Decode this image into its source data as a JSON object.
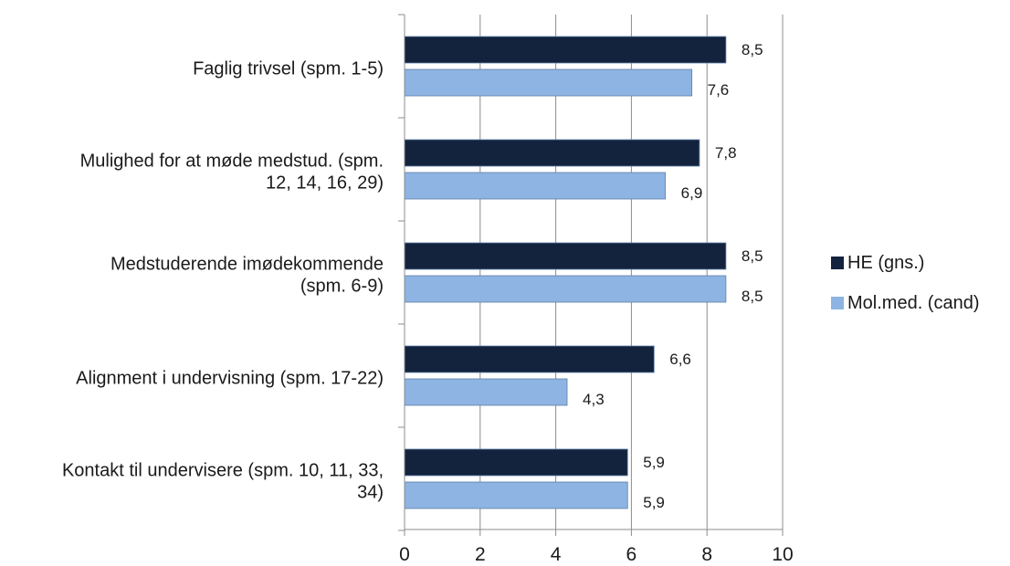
{
  "chart_data": {
    "type": "bar",
    "orientation": "horizontal",
    "categories": [
      [
        "Faglig trivsel (spm. 1-5)"
      ],
      [
        "Mulighed for at møde medstud. (spm.",
        "12, 14, 16, 29)"
      ],
      [
        "Medstuderende imødekommende",
        "(spm. 6-9)"
      ],
      [
        "Alignment i undervisning (spm. 17-22)"
      ],
      [
        "Kontakt til undervisere (spm. 10, 11, 33,",
        "34)"
      ]
    ],
    "series": [
      {
        "name": "HE (gns.)",
        "values": [
          8.5,
          7.8,
          8.5,
          6.6,
          5.9
        ],
        "labels": [
          "8,5",
          "7,8",
          "8,5",
          "6,6",
          "5,9"
        ],
        "color": "#14233d"
      },
      {
        "name": "Mol.med. (cand)",
        "values": [
          7.6,
          6.9,
          8.5,
          4.3,
          5.9
        ],
        "labels": [
          "7,6",
          "6,9",
          "8,5",
          "4,3",
          "5,9"
        ],
        "color": "#8db4e2"
      }
    ],
    "xlim": [
      0,
      10
    ],
    "xticks": [
      0,
      2,
      4,
      6,
      8,
      10
    ],
    "grid": "vertical",
    "legend": "right"
  }
}
